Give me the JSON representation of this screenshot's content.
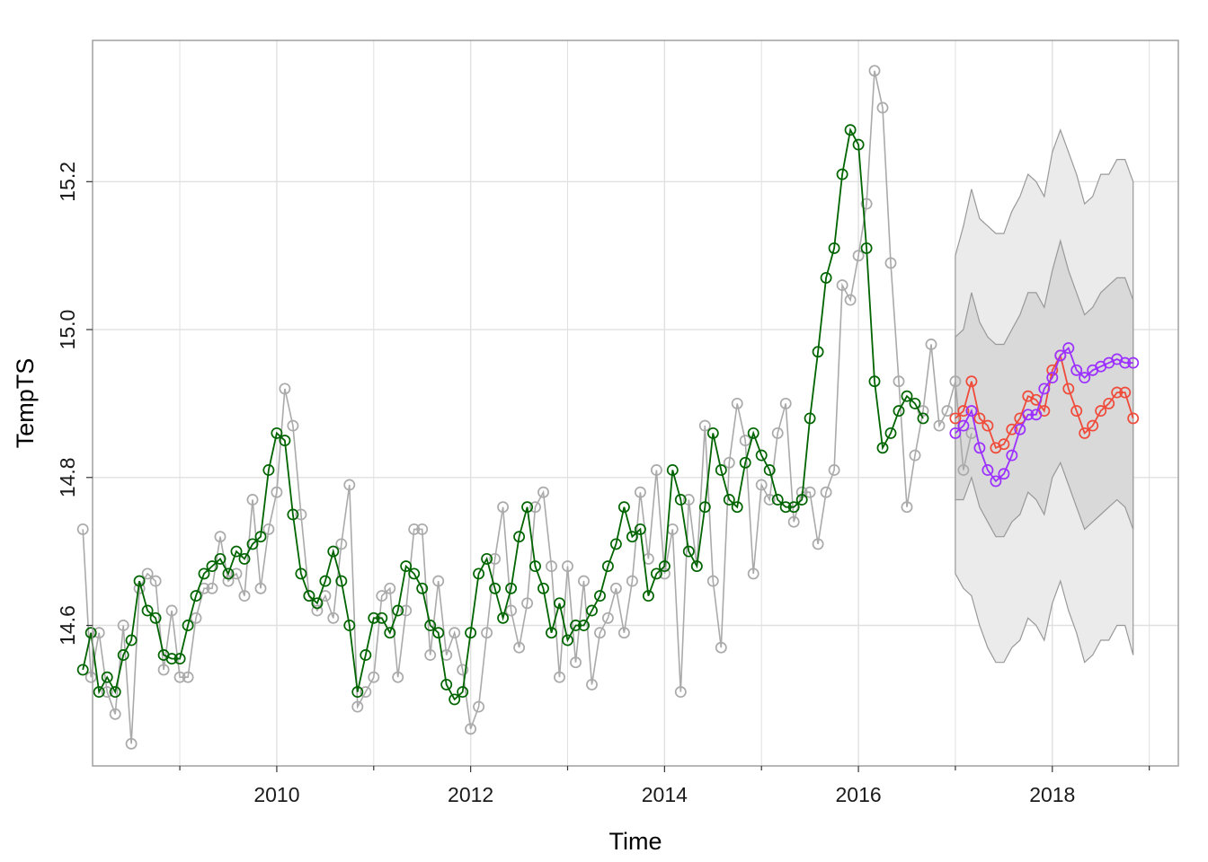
{
  "chart_data": {
    "type": "line",
    "xlabel": "Time",
    "ylabel": "TempTS",
    "xlim": [
      2008.1,
      2019.3
    ],
    "ylim": [
      14.41,
      15.391
    ],
    "x_ticks": [
      2010,
      2012,
      2014,
      2016,
      2018
    ],
    "x_minor_ticks": [
      2009,
      2011,
      2013,
      2015,
      2017,
      2019
    ],
    "y_ticks": [
      14.6,
      14.8,
      15.0,
      15.2
    ],
    "y_tick_labels": [
      "14.6",
      "14.8",
      "15.0",
      "15.2"
    ],
    "grid": true,
    "colors": {
      "observed": "#aaaaaa",
      "fitted": "#006400",
      "forecast_red": "#f04a3a",
      "forecast_purple": "#9b30ff",
      "band_outer": "#ebebeb",
      "band_inner": "#d9d9d9",
      "band_edge": "#999999",
      "grid": "#e0e0e0",
      "panel_border": "#999999"
    },
    "series": [
      {
        "key": "observed",
        "start": 2008.0,
        "step": 0.0833333,
        "values": [
          14.73,
          14.53,
          14.59,
          14.51,
          14.48,
          14.6,
          14.44,
          14.65,
          14.67,
          14.66,
          14.54,
          14.62,
          14.53,
          14.53,
          14.61,
          14.65,
          14.65,
          14.72,
          14.66,
          14.67,
          14.64,
          14.77,
          14.65,
          14.73,
          14.78,
          14.92,
          14.87,
          14.75,
          14.64,
          14.62,
          14.64,
          14.61,
          14.71,
          14.79,
          14.49,
          14.51,
          14.53,
          14.64,
          14.65,
          14.53,
          14.62,
          14.73,
          14.73,
          14.56,
          14.66,
          14.56,
          14.59,
          14.54,
          14.46,
          14.49,
          14.59,
          14.69,
          14.76,
          14.62,
          14.57,
          14.63,
          14.76,
          14.78,
          14.68,
          14.53,
          14.68,
          14.55,
          14.66,
          14.52,
          14.59,
          14.61,
          14.65,
          14.59,
          14.66,
          14.78,
          14.69,
          14.81,
          14.67,
          14.73,
          14.51,
          14.77,
          14.68,
          14.87,
          14.66,
          14.57,
          14.82,
          14.9,
          14.85,
          14.67,
          14.79,
          14.77,
          14.86,
          14.9,
          14.74,
          14.78,
          14.78,
          14.71,
          14.78,
          14.81,
          15.06,
          15.04,
          15.1,
          15.17,
          15.35,
          15.3,
          15.09,
          14.93,
          14.76,
          14.83,
          14.89,
          14.98,
          14.87,
          14.89,
          14.93,
          14.81,
          14.86
        ]
      },
      {
        "key": "fitted",
        "start": 2008.0,
        "step": 0.0833333,
        "values": [
          14.54,
          14.59,
          14.51,
          14.53,
          14.51,
          14.56,
          14.58,
          14.66,
          14.62,
          14.61,
          14.56,
          14.555,
          14.555,
          14.6,
          14.64,
          14.67,
          14.68,
          14.69,
          14.67,
          14.7,
          14.69,
          14.71,
          14.72,
          14.81,
          14.86,
          14.85,
          14.75,
          14.67,
          14.64,
          14.63,
          14.66,
          14.7,
          14.66,
          14.6,
          14.51,
          14.56,
          14.61,
          14.61,
          14.59,
          14.62,
          14.68,
          14.67,
          14.65,
          14.6,
          14.59,
          14.52,
          14.5,
          14.51,
          14.59,
          14.67,
          14.69,
          14.65,
          14.61,
          14.65,
          14.72,
          14.76,
          14.68,
          14.65,
          14.59,
          14.63,
          14.58,
          14.6,
          14.6,
          14.62,
          14.64,
          14.68,
          14.71,
          14.76,
          14.72,
          14.73,
          14.64,
          14.67,
          14.68,
          14.81,
          14.77,
          14.7,
          14.68,
          14.76,
          14.86,
          14.81,
          14.77,
          14.76,
          14.82,
          14.86,
          14.83,
          14.81,
          14.77,
          14.76,
          14.76,
          14.77,
          14.88,
          14.97,
          15.07,
          15.11,
          15.21,
          15.27,
          15.25,
          15.11,
          14.93,
          14.84,
          14.86,
          14.89,
          14.91,
          14.9,
          14.88
        ]
      },
      {
        "key": "forecast_red",
        "start": 2017.0,
        "step": 0.0833333,
        "values": [
          14.88,
          14.89,
          14.93,
          14.88,
          14.87,
          14.84,
          14.845,
          14.865,
          14.88,
          14.91,
          14.905,
          14.89,
          14.945,
          14.965,
          14.92,
          14.89,
          14.86,
          14.87,
          14.89,
          14.9,
          14.915,
          14.915,
          14.88
        ]
      },
      {
        "key": "forecast_purple",
        "start": 2017.0,
        "step": 0.0833333,
        "values": [
          14.86,
          14.87,
          14.89,
          14.84,
          14.81,
          14.795,
          14.805,
          14.83,
          14.865,
          14.885,
          14.885,
          14.92,
          14.935,
          14.965,
          14.975,
          14.945,
          14.935,
          14.945,
          14.95,
          14.955,
          14.96,
          14.955,
          14.955
        ]
      }
    ],
    "band_outer": {
      "start": 2017.0,
      "step": 0.0833333,
      "upper": [
        15.1,
        15.14,
        15.19,
        15.15,
        15.14,
        15.13,
        15.13,
        15.16,
        15.18,
        15.21,
        15.2,
        15.18,
        15.24,
        15.27,
        15.24,
        15.21,
        15.17,
        15.18,
        15.21,
        15.21,
        15.23,
        15.23,
        15.2
      ],
      "lower": [
        14.67,
        14.65,
        14.64,
        14.6,
        14.57,
        14.55,
        14.55,
        14.57,
        14.58,
        14.61,
        14.6,
        14.58,
        14.63,
        14.66,
        14.62,
        14.59,
        14.55,
        14.56,
        14.58,
        14.58,
        14.6,
        14.6,
        14.56
      ]
    },
    "band_inner": {
      "start": 2017.0,
      "step": 0.0833333,
      "upper": [
        14.99,
        15.0,
        15.05,
        15.01,
        14.99,
        14.98,
        14.98,
        15.0,
        15.02,
        15.05,
        15.05,
        15.03,
        15.08,
        15.12,
        15.08,
        15.05,
        15.02,
        15.03,
        15.05,
        15.06,
        15.07,
        15.07,
        15.04
      ],
      "lower": [
        14.77,
        14.77,
        14.8,
        14.76,
        14.74,
        14.72,
        14.72,
        14.74,
        14.75,
        14.78,
        14.77,
        14.75,
        14.8,
        14.82,
        14.79,
        14.76,
        14.73,
        14.74,
        14.75,
        14.76,
        14.77,
        14.76,
        14.73
      ]
    }
  }
}
